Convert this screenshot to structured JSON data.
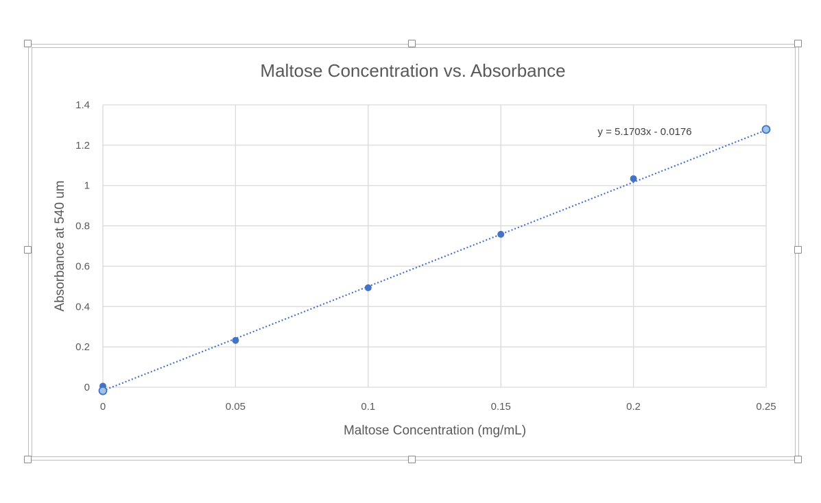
{
  "chart_data": {
    "type": "scatter",
    "title": "Maltose Concentration vs. Absorbance",
    "xlabel": "Maltose Concentration (mg/mL)",
    "ylabel": "Absorbance at 540 um",
    "xlim": [
      0,
      0.25
    ],
    "ylim": [
      0,
      1.4
    ],
    "x_ticks": [
      "0",
      "0.05",
      "0.1",
      "0.15",
      "0.2",
      "0.25"
    ],
    "y_ticks": [
      "0",
      "0.2",
      "0.4",
      "0.6",
      "0.8",
      "1",
      "1.2",
      "1.4"
    ],
    "grid": true,
    "series": [
      {
        "x": [
          0,
          0.05,
          0.1,
          0.15,
          0.2,
          0.25
        ],
        "y": [
          0.005,
          0.232,
          0.493,
          0.758,
          1.034,
          1.278
        ],
        "color": "#4472c4"
      }
    ],
    "trendline": {
      "type": "linear",
      "slope": 5.1703,
      "intercept": -0.0176,
      "equation": "y = 5.1703x - 0.0176",
      "style": "dotted",
      "color": "#4472c4"
    },
    "selected_points": [
      {
        "x": 0,
        "y": -0.0176
      },
      {
        "x": 0.25,
        "y": 1.278
      }
    ]
  },
  "colors": {
    "series": "#4472c4",
    "selected_fill": "#9dc3e6",
    "grid": "#d9d9d9",
    "text": "#595959"
  }
}
